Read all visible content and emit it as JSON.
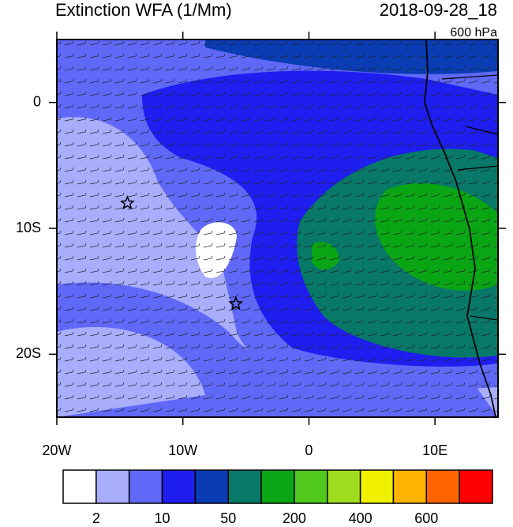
{
  "title": "Extinction WFA (1/Mm)",
  "date": "2018-09-28_18",
  "level": "600 hPa",
  "map": {
    "xlim": [
      -20,
      15
    ],
    "ylim": [
      -25,
      5
    ],
    "xticks": [
      {
        "value": -20,
        "label": "20W"
      },
      {
        "value": -10,
        "label": "10W"
      },
      0,
      {
        "value": 10,
        "label": "10E"
      }
    ],
    "yticks": [
      0,
      {
        "value": -10,
        "label": "10S"
      },
      {
        "value": -20,
        "label": "20S"
      }
    ],
    "markers": [
      {
        "lon": -14.4,
        "lat": -8
      },
      {
        "lon": -5.8,
        "lat": -16
      }
    ]
  },
  "colorbar": {
    "colors": [
      "#ffffff",
      "#a8adfc",
      "#6068f8",
      "#1e1ef0",
      "#0a3cb4",
      "#087868",
      "#0aa514",
      "#50c81e",
      "#a0dc1e",
      "#f0f000",
      "#ffb400",
      "#ff6400",
      "#ff0000"
    ],
    "labels": [
      "2",
      "10",
      "50",
      "200",
      "400",
      "600"
    ]
  }
}
